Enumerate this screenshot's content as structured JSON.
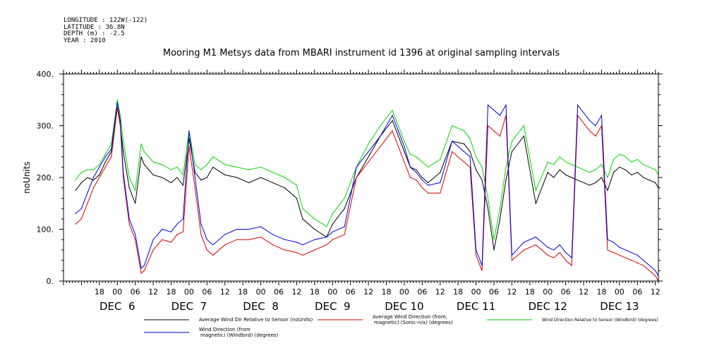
{
  "metadata": [
    "LONGITUDE : 122W(-122)",
    "LATITUDE : 36.8N",
    "DEPTH (m) : -2.5",
    "YEAR : 2010"
  ],
  "chart_data": {
    "type": "line",
    "title": "Mooring M1 Metsys data from MBARI instrument id 1396 at original sampling intervals",
    "ylabel": "noUnits",
    "xlabel": "",
    "ylim": [
      0,
      400
    ],
    "yticks": [
      "0.",
      "100.",
      "200.",
      "300.",
      "400."
    ],
    "x_unit": "hours since 2010-12-06 00:00",
    "xlim": [
      -18,
      181
    ],
    "xticks": [
      {
        "x": -6,
        "label": "18"
      },
      {
        "x": 0,
        "label": "00"
      },
      {
        "x": 6,
        "label": "06"
      },
      {
        "x": 12,
        "label": "12"
      },
      {
        "x": 18,
        "label": "18"
      },
      {
        "x": 24,
        "label": "00"
      },
      {
        "x": 30,
        "label": "06"
      },
      {
        "x": 36,
        "label": "12"
      },
      {
        "x": 42,
        "label": "18"
      },
      {
        "x": 48,
        "label": "00"
      },
      {
        "x": 54,
        "label": "06"
      },
      {
        "x": 60,
        "label": "12"
      },
      {
        "x": 66,
        "label": "18"
      },
      {
        "x": 72,
        "label": "00"
      },
      {
        "x": 78,
        "label": "06"
      },
      {
        "x": 84,
        "label": "12"
      },
      {
        "x": 90,
        "label": "18"
      },
      {
        "x": 96,
        "label": "00"
      },
      {
        "x": 102,
        "label": "06"
      },
      {
        "x": 108,
        "label": "12"
      },
      {
        "x": 114,
        "label": "18"
      },
      {
        "x": 120,
        "label": "00"
      },
      {
        "x": 126,
        "label": "06"
      },
      {
        "x": 132,
        "label": "12"
      },
      {
        "x": 138,
        "label": "18"
      },
      {
        "x": 144,
        "label": "00"
      },
      {
        "x": 150,
        "label": "06"
      },
      {
        "x": 156,
        "label": "12"
      },
      {
        "x": 162,
        "label": "18"
      },
      {
        "x": 168,
        "label": "00"
      },
      {
        "x": 174,
        "label": "06"
      },
      {
        "x": 180,
        "label": "12"
      }
    ],
    "day_labels": [
      {
        "x": 0,
        "label": "DEC  6"
      },
      {
        "x": 24,
        "label": "DEC  7"
      },
      {
        "x": 48,
        "label": "DEC  8"
      },
      {
        "x": 72,
        "label": "DEC  9"
      },
      {
        "x": 96,
        "label": "DEC 10"
      },
      {
        "x": 120,
        "label": "DEC 11"
      },
      {
        "x": 144,
        "label": "DEC 12"
      },
      {
        "x": 168,
        "label": "DEC 13"
      }
    ],
    "series": [
      {
        "name": "Average Wind Dir Relative to Sensor (noUnits)",
        "color": "#000000",
        "x": [
          -14,
          -12,
          -10,
          -8,
          -6,
          -4,
          -2,
          0,
          1,
          2,
          4,
          6,
          8,
          9,
          12,
          15,
          18,
          20,
          22,
          24,
          26,
          28,
          30,
          32,
          36,
          40,
          44,
          48,
          52,
          56,
          60,
          62,
          66,
          70,
          72,
          76,
          80,
          84,
          88,
          92,
          94,
          96,
          98,
          100,
          102,
          104,
          108,
          112,
          116,
          118,
          120,
          122,
          124,
          126,
          128,
          130,
          132,
          136,
          140,
          144,
          146,
          148,
          150,
          152,
          154,
          158,
          160,
          162,
          164,
          166,
          168,
          170,
          172,
          174,
          176,
          178,
          180,
          181
        ],
        "y": [
          175,
          190,
          200,
          195,
          205,
          230,
          250,
          335,
          300,
          250,
          180,
          150,
          240,
          225,
          205,
          200,
          190,
          200,
          185,
          275,
          210,
          195,
          200,
          220,
          205,
          200,
          190,
          200,
          190,
          180,
          160,
          120,
          100,
          85,
          110,
          140,
          200,
          240,
          280,
          310,
          280,
          250,
          220,
          215,
          200,
          190,
          210,
          270,
          265,
          250,
          215,
          195,
          140,
          60,
          120,
          195,
          250,
          280,
          150,
          210,
          200,
          215,
          205,
          200,
          195,
          185,
          190,
          200,
          175,
          210,
          220,
          215,
          205,
          210,
          200,
          195,
          190,
          180
        ]
      },
      {
        "name": "Average Wind Direction (from, magnetic) (Sonic-n/a) (degrees)",
        "color": "#dd0000",
        "x": [
          -14,
          -12,
          -10,
          -8,
          -6,
          -4,
          -2,
          0,
          1,
          2,
          4,
          6,
          8,
          9,
          12,
          15,
          18,
          20,
          22,
          24,
          26,
          28,
          30,
          32,
          36,
          40,
          44,
          48,
          52,
          56,
          60,
          62,
          66,
          70,
          72,
          76,
          80,
          84,
          88,
          92,
          94,
          96,
          98,
          100,
          102,
          104,
          108,
          112,
          116,
          118,
          120,
          122,
          124,
          126,
          128,
          130,
          132,
          136,
          140,
          144,
          146,
          148,
          150,
          152,
          154,
          158,
          160,
          162,
          164,
          166,
          168,
          170,
          172,
          174,
          176,
          178,
          180,
          181
        ],
        "y": [
          110,
          120,
          150,
          180,
          200,
          220,
          240,
          335,
          300,
          200,
          110,
          80,
          15,
          20,
          60,
          80,
          75,
          90,
          95,
          260,
          180,
          90,
          60,
          50,
          70,
          80,
          80,
          85,
          70,
          60,
          55,
          50,
          60,
          70,
          80,
          90,
          200,
          230,
          260,
          290,
          260,
          230,
          200,
          195,
          180,
          170,
          170,
          250,
          230,
          220,
          50,
          20,
          300,
          290,
          280,
          320,
          40,
          60,
          70,
          50,
          45,
          55,
          40,
          30,
          320,
          290,
          280,
          300,
          60,
          55,
          50,
          45,
          40,
          35,
          30,
          20,
          10,
          0
        ]
      },
      {
        "name": "Wind Direction Relative to Sensor (Windbird) (degrees)",
        "color": "#00dd00",
        "x": [
          -14,
          -12,
          -10,
          -8,
          -6,
          -4,
          -2,
          0,
          1,
          2,
          4,
          6,
          8,
          9,
          12,
          15,
          18,
          20,
          22,
          24,
          26,
          28,
          30,
          32,
          36,
          40,
          44,
          48,
          52,
          56,
          60,
          62,
          66,
          70,
          72,
          76,
          80,
          84,
          88,
          92,
          94,
          96,
          98,
          100,
          102,
          104,
          108,
          112,
          116,
          118,
          120,
          122,
          124,
          126,
          128,
          130,
          132,
          136,
          140,
          144,
          146,
          148,
          150,
          152,
          154,
          158,
          160,
          162,
          164,
          166,
          168,
          170,
          172,
          174,
          176,
          178,
          180,
          181
        ],
        "y": [
          195,
          210,
          215,
          215,
          225,
          245,
          265,
          350,
          320,
          270,
          200,
          175,
          265,
          250,
          230,
          225,
          215,
          220,
          205,
          290,
          225,
          215,
          225,
          240,
          225,
          220,
          215,
          220,
          210,
          200,
          185,
          140,
          120,
          105,
          130,
          160,
          220,
          265,
          300,
          330,
          300,
          270,
          245,
          240,
          230,
          220,
          235,
          300,
          290,
          275,
          240,
          220,
          160,
          80,
          140,
          220,
          270,
          300,
          175,
          230,
          225,
          240,
          230,
          225,
          220,
          210,
          215,
          225,
          200,
          235,
          245,
          240,
          230,
          235,
          225,
          220,
          215,
          205
        ]
      },
      {
        "name": "Wind Direction (from magnetic) (Windbird) (degrees)",
        "color": "#0000dd",
        "x": [
          -14,
          -12,
          -10,
          -8,
          -6,
          -4,
          -2,
          0,
          1,
          2,
          4,
          6,
          8,
          9,
          12,
          15,
          18,
          20,
          22,
          24,
          26,
          28,
          30,
          32,
          36,
          40,
          44,
          48,
          52,
          56,
          60,
          62,
          66,
          70,
          72,
          76,
          80,
          84,
          88,
          92,
          94,
          96,
          98,
          100,
          102,
          104,
          108,
          112,
          116,
          118,
          120,
          122,
          124,
          126,
          128,
          130,
          132,
          136,
          140,
          144,
          146,
          148,
          150,
          152,
          154,
          158,
          160,
          162,
          164,
          166,
          168,
          170,
          172,
          174,
          176,
          178,
          180,
          181
        ],
        "y": [
          130,
          140,
          170,
          200,
          220,
          240,
          255,
          345,
          310,
          210,
          120,
          90,
          25,
          30,
          80,
          100,
          95,
          110,
          120,
          290,
          200,
          110,
          80,
          70,
          90,
          100,
          100,
          105,
          90,
          80,
          75,
          70,
          80,
          85,
          95,
          105,
          220,
          250,
          280,
          320,
          290,
          260,
          220,
          210,
          195,
          185,
          190,
          270,
          250,
          240,
          60,
          30,
          340,
          330,
          320,
          340,
          50,
          75,
          85,
          65,
          60,
          70,
          55,
          45,
          340,
          310,
          300,
          320,
          80,
          75,
          65,
          60,
          55,
          50,
          40,
          30,
          20,
          10
        ]
      }
    ]
  },
  "legend": [
    {
      "text": "Average Wind Dir Relative to Sensor (noUnits)",
      "color": "#000000"
    },
    {
      "text": "Average Wind Direction (from, magnetic) (Sonic-n/a) (degrees)",
      "color": "#dd0000"
    },
    {
      "text": "Wind Direction Relative to Sensor (Windbird) (degrees)",
      "color": "#00dd00"
    },
    {
      "text": "Wind Direction (from magnetic) (Windbird) (degrees)",
      "color": "#0000dd"
    }
  ]
}
